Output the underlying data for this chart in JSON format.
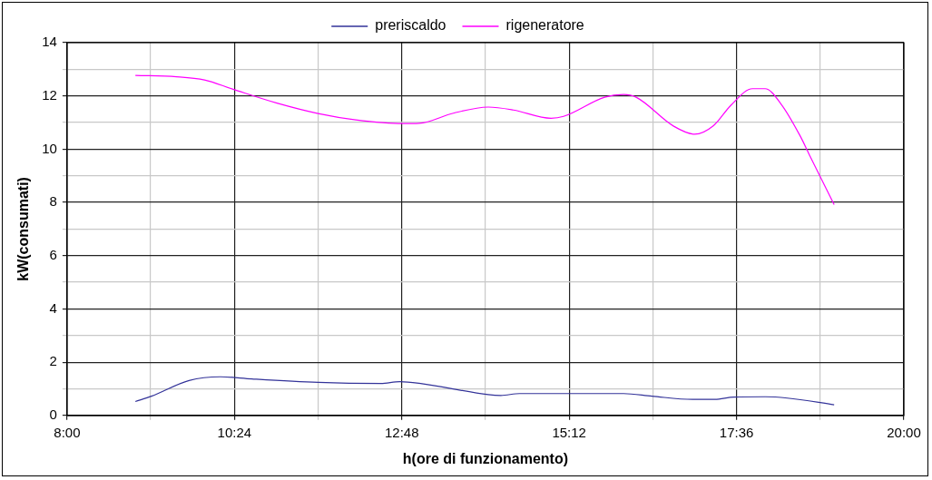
{
  "chart_data": {
    "type": "line",
    "xlabel": "h(ore di funzionamento)",
    "ylabel": "kW(consumati)",
    "xlim": [
      8,
      20
    ],
    "xticks": [
      {
        "value": 8,
        "label": "8:00"
      },
      {
        "value": 9.2,
        "label": null
      },
      {
        "value": 10.4,
        "label": "10:24"
      },
      {
        "value": 11.6,
        "label": null
      },
      {
        "value": 12.8,
        "label": "12:48"
      },
      {
        "value": 14,
        "label": null
      },
      {
        "value": 15.2,
        "label": "15:12"
      },
      {
        "value": 16.4,
        "label": null
      },
      {
        "value": 17.6,
        "label": "17:36"
      },
      {
        "value": 18.8,
        "label": null
      },
      {
        "value": 20,
        "label": "20:00"
      }
    ],
    "ylim": [
      0,
      14
    ],
    "yticks": [
      0,
      {
        "value": 1,
        "label": null
      },
      2,
      {
        "value": 3,
        "label": null
      },
      4,
      {
        "value": 5,
        "label": null
      },
      6,
      {
        "value": 7,
        "label": null
      },
      8,
      {
        "value": 9,
        "label": null
      },
      10,
      {
        "value": 11,
        "label": null
      },
      12,
      {
        "value": 13,
        "label": null
      },
      14
    ],
    "grid": true,
    "legend": "top",
    "marker": "none",
    "line_style": "solid",
    "series": [
      {
        "name": "preriscaldo",
        "color": "#333399",
        "x": [
          8.98,
          9.21,
          9.75,
          10.2,
          10.65,
          11.6,
          12.5,
          12.77,
          13.09,
          14.04,
          14.22,
          14.49,
          15.98,
          16.39,
          16.97,
          17.29,
          17.56,
          18.01,
          18.33,
          19.0
        ],
        "values": [
          0.52,
          0.72,
          1.31,
          1.45,
          1.37,
          1.24,
          1.2,
          1.27,
          1.19,
          0.78,
          0.75,
          0.82,
          0.82,
          0.72,
          0.6,
          0.6,
          0.69,
          0.7,
          0.65,
          0.4
        ]
      },
      {
        "name": "rigeneratore",
        "color": "#ff00ff",
        "x": [
          8.98,
          9.57,
          9.97,
          10.38,
          11.01,
          11.6,
          12.14,
          12.82,
          13.05,
          13.54,
          14.04,
          14.4,
          14.94,
          15.12,
          15.71,
          15.98,
          16.16,
          16.7,
          17.0,
          17.27,
          17.52,
          17.83,
          18.01,
          18.24,
          18.51,
          18.65,
          19.0
        ],
        "values": [
          12.77,
          12.72,
          12.6,
          12.25,
          11.73,
          11.34,
          11.1,
          10.96,
          10.97,
          11.35,
          11.58,
          11.47,
          11.16,
          11.23,
          11.95,
          12.05,
          11.95,
          10.86,
          10.56,
          10.88,
          11.65,
          12.27,
          12.27,
          11.69,
          10.51,
          9.76,
          7.92
        ]
      }
    ]
  }
}
